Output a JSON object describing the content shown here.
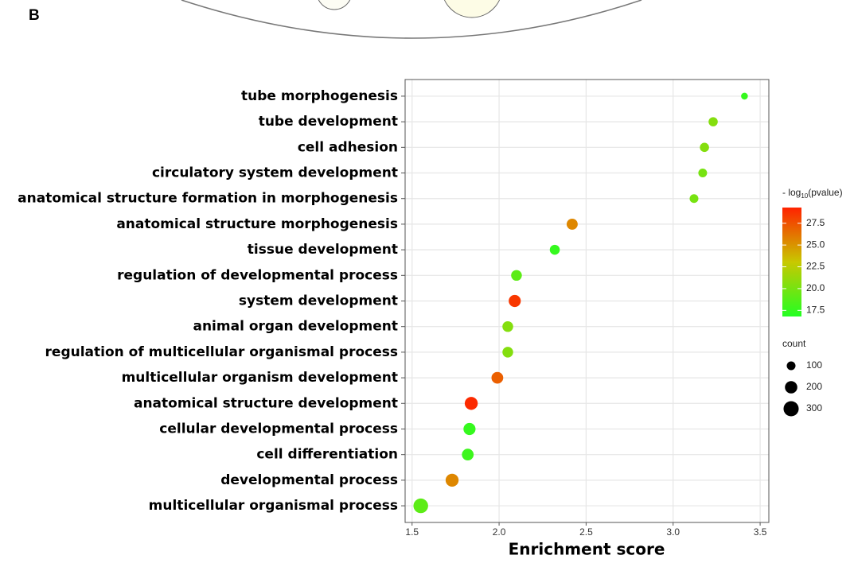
{
  "panel_label": "B",
  "chart_data": {
    "type": "bubble",
    "x_label": "Enrichment score",
    "categories": [
      "tube morphogenesis",
      "tube development",
      "cell adhesion",
      "circulatory system development",
      "anatomical structure formation in morphogenesis",
      "anatomical structure morphogenesis",
      "tissue development",
      "regulation of developmental process",
      "system development",
      "animal organ development",
      "regulation of multicellular organismal process",
      "multicellular organism development",
      "anatomical structure development",
      "cellular developmental process",
      "cell differentiation",
      "developmental process",
      "multicellular organismal process"
    ],
    "values": [
      3.41,
      3.23,
      3.18,
      3.17,
      3.12,
      2.42,
      2.32,
      2.1,
      2.09,
      2.05,
      2.05,
      1.99,
      1.84,
      1.83,
      1.82,
      1.73,
      1.55
    ],
    "sizes": [
      60,
      110,
      110,
      100,
      100,
      160,
      130,
      150,
      190,
      150,
      150,
      180,
      220,
      190,
      180,
      220,
      280
    ],
    "color_values": [
      17.5,
      20.5,
      20.5,
      20,
      20,
      25.5,
      17.5,
      19,
      28.5,
      20.5,
      20.5,
      27,
      29,
      17.5,
      17.8,
      25.5,
      19
    ],
    "xlim": [
      1.46,
      3.55
    ],
    "xticks": [
      1.5,
      {
        "value": 2,
        "label": "2.0"
      },
      2.5,
      {
        "value": 3,
        "label": "3.0"
      },
      3.5
    ],
    "grid": true,
    "colorbar_title": {
      "prefix": "- log",
      "sub": "10",
      "suffix": "(pvalue)"
    },
    "colorbar_lim": [
      16.8,
      29.3
    ],
    "colorbar_ticks": [
      17.5,
      {
        "value": 20,
        "label": "20.0"
      },
      22.5,
      {
        "value": 25,
        "label": "25.0"
      },
      27.5
    ],
    "colorscale": [
      "#22ff22",
      "#c8c800",
      "#ff2200"
    ],
    "size_legend_title": "count",
    "size_legend": [
      100,
      200,
      300
    ]
  }
}
